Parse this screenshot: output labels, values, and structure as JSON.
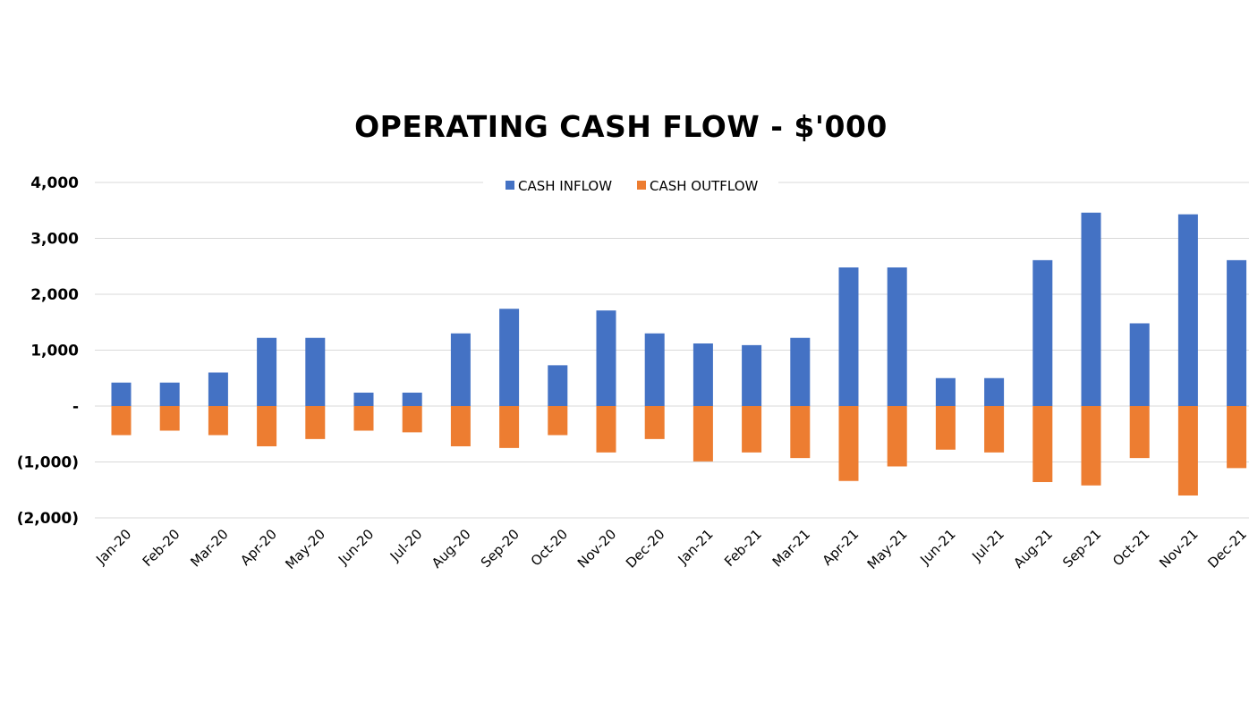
{
  "chart_data": {
    "type": "bar",
    "title": "OPERATING CASH FLOW - $'000",
    "xlabel": "",
    "ylabel": "",
    "ylim": [
      -2000,
      4000
    ],
    "yticks": [
      4000,
      3000,
      2000,
      1000,
      0,
      -1000,
      -2000
    ],
    "ytick_labels": [
      "4,000",
      "3,000",
      "2,000",
      "1,000",
      "-",
      "(1,000)",
      "(2,000)"
    ],
    "grid": true,
    "legend_position": "top-center",
    "categories": [
      "Jan-20",
      "Feb-20",
      "Mar-20",
      "Apr-20",
      "May-20",
      "Jun-20",
      "Jul-20",
      "Aug-20",
      "Sep-20",
      "Oct-20",
      "Nov-20",
      "Dec-20",
      "Jan-21",
      "Feb-21",
      "Mar-21",
      "Apr-21",
      "May-21",
      "Jun-21",
      "Jul-21",
      "Aug-21",
      "Sep-21",
      "Oct-21",
      "Nov-21",
      "Dec-21"
    ],
    "series": [
      {
        "name": "CASH INFLOW",
        "color": "#4472C4",
        "values": [
          420,
          420,
          600,
          1220,
          1220,
          240,
          240,
          1300,
          1740,
          730,
          1710,
          1300,
          1120,
          1090,
          1220,
          2480,
          2480,
          500,
          500,
          2610,
          3460,
          1480,
          3430,
          2610
        ]
      },
      {
        "name": "CASH OUTFLOW",
        "color": "#ED7D31",
        "values": [
          -520,
          -440,
          -520,
          -720,
          -590,
          -440,
          -470,
          -720,
          -750,
          -520,
          -830,
          -590,
          -990,
          -830,
          -930,
          -1340,
          -1080,
          -780,
          -830,
          -1360,
          -1420,
          -930,
          -1600,
          -1110
        ]
      }
    ]
  }
}
